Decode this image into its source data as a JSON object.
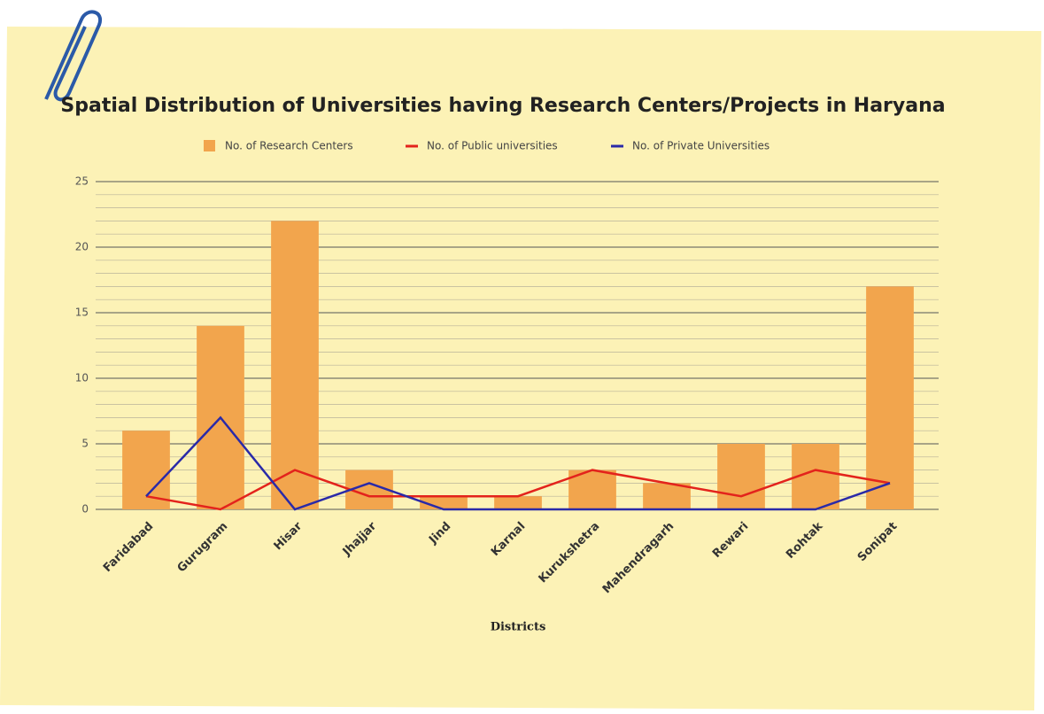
{
  "chart_data": {
    "type": "bar_line",
    "title": "Spatial Distribution of Universities having Research Centers/Projects in Haryana",
    "x_label": "Districts",
    "categories": [
      "Faridabad",
      "Gurugram",
      "Hisar",
      "Jhajjar",
      "Jind",
      "Karnal",
      "Kurukshetra",
      "Mahendragarh",
      "Rewari",
      "Rohtak",
      "Sonipat"
    ],
    "series": [
      {
        "name": "No. of Research Centers",
        "type": "bar",
        "color": "#f2a54d",
        "values": [
          6,
          14,
          22,
          3,
          1,
          1,
          3,
          2,
          5,
          5,
          17
        ]
      },
      {
        "name": "No. of Public universities",
        "type": "line",
        "color": "#e3231c",
        "values": [
          1,
          0,
          3,
          1,
          1,
          1,
          3,
          2,
          1,
          3,
          2
        ]
      },
      {
        "name": "No. of Private Universities",
        "type": "line",
        "color": "#2a2aa8",
        "values": [
          1,
          7,
          0,
          2,
          0,
          0,
          0,
          0,
          0,
          0,
          2
        ]
      }
    ],
    "ylim": [
      0,
      25
    ],
    "yticks": [
      0,
      5,
      10,
      15,
      20,
      25
    ],
    "grid": true,
    "minor_grid": true,
    "legend": "top"
  }
}
